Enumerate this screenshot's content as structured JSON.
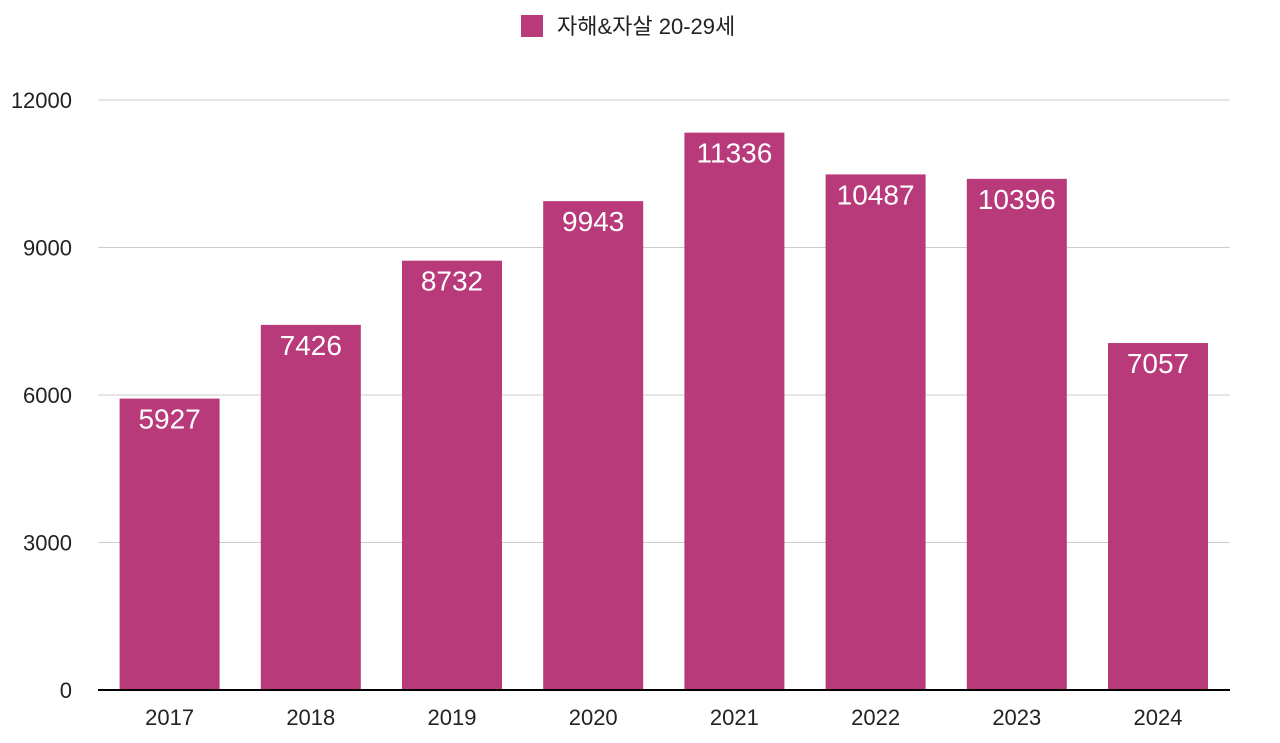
{
  "chart_data": {
    "type": "bar",
    "categories": [
      "2017",
      "2018",
      "2019",
      "2020",
      "2021",
      "2022",
      "2023",
      "2024"
    ],
    "series": [
      {
        "name": "자해&자살 20-29세",
        "values": [
          5927,
          7426,
          8732,
          9943,
          11336,
          10487,
          10396,
          7057
        ],
        "color": "#b93a7a"
      }
    ],
    "yticks": [
      0,
      3000,
      6000,
      9000,
      12000
    ],
    "ylim": [
      0,
      12000
    ],
    "grid": true,
    "legend_position": "top-center",
    "data_labels": true
  },
  "colors": {
    "gridline": "#cccccc",
    "baseline": "#000000",
    "text": "#222222",
    "data_label": "#ffffff"
  }
}
